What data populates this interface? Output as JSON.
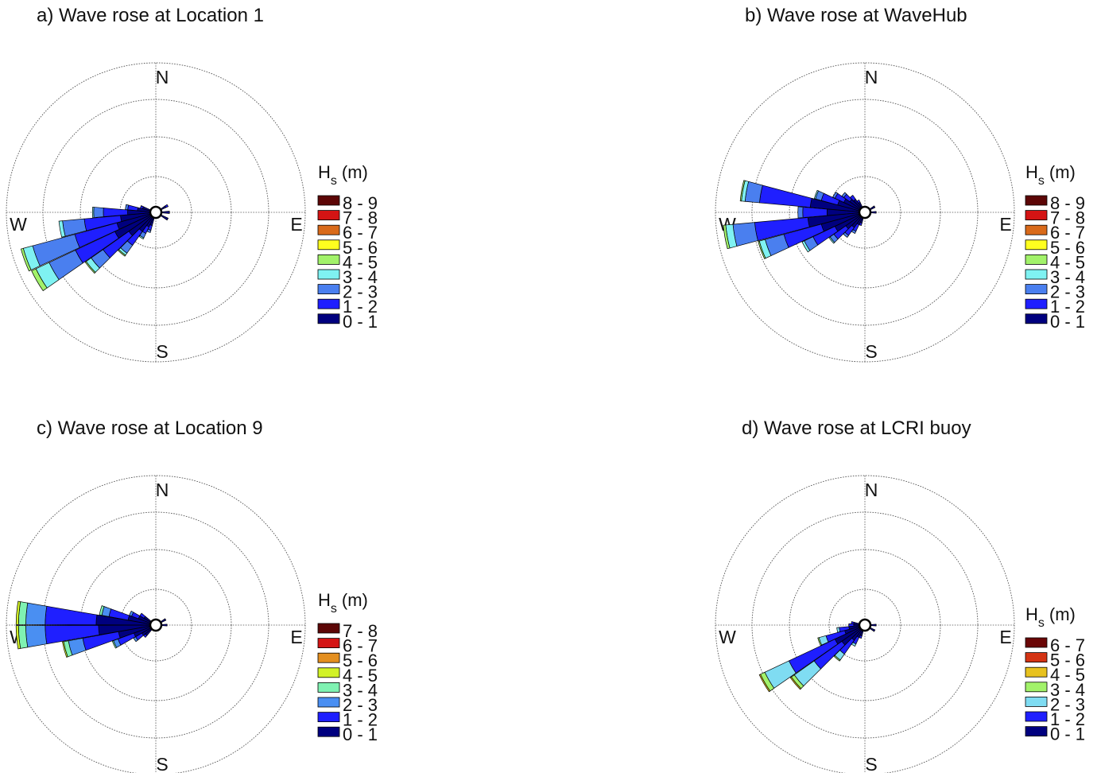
{
  "chart_data": [
    {
      "type": "wave-rose",
      "title": "a) Wave rose at Location 1",
      "compass": [
        "N",
        "E",
        "S",
        "W"
      ],
      "legend_title": "H",
      "legend_title_sub": "s",
      "legend_title_unit": "(m)",
      "bins": [
        "0 - 1",
        "1 - 2",
        "2 - 3",
        "3 - 4",
        "4 - 5",
        "5 - 6",
        "6 - 7",
        "7 - 8",
        "8 - 9"
      ],
      "bin_colors": [
        "#00007f",
        "#1f1fff",
        "#4a7fef",
        "#7ff2f2",
        "#a2f26a",
        "#ffff1f",
        "#d96a1a",
        "#d41414",
        "#5c0606"
      ],
      "directions": [
        {
          "dir": 240,
          "cum": [
            17,
            35,
            47,
            53,
            55,
            55,
            55,
            55,
            55
          ]
        },
        {
          "dir": 250,
          "cum": [
            15,
            33,
            51,
            55,
            56,
            56,
            56,
            56,
            56
          ]
        },
        {
          "dir": 260,
          "cum": [
            13,
            28,
            37,
            38.5,
            38.5,
            38.5,
            38.5,
            38.5,
            38.5
          ]
        },
        {
          "dir": 270,
          "cum": [
            10,
            20,
            24,
            24.5,
            24.5,
            24.5,
            24.5,
            24.5,
            24.5
          ]
        },
        {
          "dir": 230,
          "cum": [
            12,
            25,
            31,
            33.5,
            34,
            34,
            34,
            34,
            34
          ]
        },
        {
          "dir": 220,
          "cum": [
            8,
            15,
            19,
            20,
            20.5,
            20.5,
            20.5,
            20.5,
            20.5
          ]
        },
        {
          "dir": 280,
          "cum": [
            6,
            10,
            11,
            11,
            11,
            11,
            11,
            11,
            11
          ]
        },
        {
          "dir": 210,
          "cum": [
            5,
            8,
            10,
            10.5,
            10.5,
            10.5,
            10.5,
            10.5,
            10.5
          ]
        },
        {
          "dir": 200,
          "cum": [
            4,
            6,
            7,
            7,
            7,
            7,
            7,
            7,
            7
          ]
        },
        {
          "dir": 290,
          "cum": [
            4,
            5,
            5,
            5,
            5,
            5,
            5,
            5,
            5
          ]
        },
        {
          "dir": 60,
          "cum": [
            3,
            4,
            4,
            4,
            4,
            4,
            4,
            4,
            4
          ]
        },
        {
          "dir": 90,
          "cum": [
            4,
            4,
            4,
            4,
            4,
            4,
            4,
            4,
            4
          ]
        },
        {
          "dir": 120,
          "cum": [
            4,
            4,
            4,
            4,
            4,
            4,
            4,
            4,
            4
          ]
        }
      ]
    },
    {
      "type": "wave-rose",
      "title": "b) Wave rose at WaveHub",
      "compass": [
        "N",
        "E",
        "S",
        "W"
      ],
      "legend_title": "H",
      "legend_title_sub": "s",
      "legend_title_unit": "(m)",
      "bins": [
        "0 - 1",
        "1 - 2",
        "2 - 3",
        "3 - 4",
        "4 - 5",
        "5 - 6",
        "6 - 7",
        "7 - 8",
        "8 - 9"
      ],
      "bin_colors": [
        "#00007f",
        "#1f1fff",
        "#4a7fef",
        "#7ff2f2",
        "#a2f26a",
        "#ffff1f",
        "#d96a1a",
        "#d41414",
        "#5c0606"
      ],
      "directions": [
        {
          "dir": 260,
          "cum": [
            22,
            44,
            53,
            56,
            57,
            57,
            57,
            57,
            57
          ]
        },
        {
          "dir": 280,
          "cum": [
            21,
            42,
            48,
            49.5,
            50,
            50,
            50,
            50,
            50
          ]
        },
        {
          "dir": 250,
          "cum": [
            17,
            33,
            41,
            43.5,
            44,
            44,
            44,
            44,
            44
          ]
        },
        {
          "dir": 240,
          "cum": [
            12,
            22,
            26,
            27,
            27,
            27,
            27,
            27,
            27
          ]
        },
        {
          "dir": 290,
          "cum": [
            10,
            17,
            19.5,
            20,
            20,
            20,
            20,
            20,
            20
          ]
        },
        {
          "dir": 230,
          "cum": [
            8,
            14,
            16,
            16.5,
            16.5,
            16.5,
            16.5,
            16.5,
            16.5
          ]
        },
        {
          "dir": 300,
          "cum": [
            8,
            12,
            13,
            13,
            13,
            13,
            13,
            13,
            13
          ]
        },
        {
          "dir": 270,
          "cum": [
            14,
            24,
            26,
            26,
            26,
            26,
            26,
            26,
            26
          ]
        },
        {
          "dir": 220,
          "cum": [
            6,
            10,
            11,
            11,
            11,
            11,
            11,
            11,
            11
          ]
        },
        {
          "dir": 310,
          "cum": [
            6,
            9,
            10,
            10,
            10,
            10,
            10,
            10,
            10
          ]
        },
        {
          "dir": 320,
          "cum": [
            5,
            7,
            7,
            7,
            7,
            7,
            7,
            7,
            7
          ]
        },
        {
          "dir": 210,
          "cum": [
            4,
            7,
            8,
            8,
            8,
            8,
            8,
            8,
            8
          ]
        },
        {
          "dir": 330,
          "cum": [
            3,
            4,
            4,
            4,
            4,
            4,
            4,
            4,
            4
          ]
        },
        {
          "dir": 200,
          "cum": [
            3,
            4,
            4,
            4,
            4,
            4,
            4,
            4,
            4
          ]
        },
        {
          "dir": 90,
          "cum": [
            3,
            3,
            3,
            3,
            3,
            3,
            3,
            3,
            3
          ]
        },
        {
          "dir": 60,
          "cum": [
            3,
            3,
            3,
            3,
            3,
            3,
            3,
            3,
            3
          ]
        }
      ]
    },
    {
      "type": "wave-rose",
      "title": "c) Wave rose at Location 9",
      "compass": [
        "N",
        "E",
        "S",
        "W"
      ],
      "legend_title": "H",
      "legend_title_sub": "s",
      "legend_title_unit": "(m)",
      "bins": [
        "0 - 1",
        "1 - 2",
        "2 - 3",
        "3 - 4",
        "4 - 5",
        "5 - 6",
        "6 - 7",
        "7 - 8"
      ],
      "bin_colors": [
        "#00007f",
        "#1f1fff",
        "#4a8ff2",
        "#7ff2b2",
        "#d2f226",
        "#e48f1f",
        "#d41414",
        "#5c0606"
      ],
      "directions": [
        {
          "dir": 265,
          "cum": [
            22,
            44,
            52,
            55,
            56,
            56,
            56,
            56
          ]
        },
        {
          "dir": 275,
          "cum": [
            23,
            44,
            52,
            55,
            56,
            56,
            56,
            56
          ]
        },
        {
          "dir": 255,
          "cum": [
            14,
            29,
            35,
            37,
            37.5,
            37.5,
            37.5,
            37.5
          ]
        },
        {
          "dir": 285,
          "cum": [
            10,
            18,
            21,
            22,
            22,
            22,
            22,
            22
          ]
        },
        {
          "dir": 245,
          "cum": [
            8,
            15,
            17,
            17.5,
            17.5,
            17.5,
            17.5,
            17.5
          ]
        },
        {
          "dir": 295,
          "cum": [
            6,
            9,
            10,
            10,
            10,
            10,
            10,
            10
          ]
        },
        {
          "dir": 235,
          "cum": [
            5,
            8,
            9,
            9,
            9,
            9,
            9,
            9
          ]
        },
        {
          "dir": 305,
          "cum": [
            4,
            6,
            6,
            6,
            6,
            6,
            6,
            6
          ]
        },
        {
          "dir": 225,
          "cum": [
            4,
            5,
            5,
            5,
            5,
            5,
            5,
            5
          ]
        },
        {
          "dir": 60,
          "cum": [
            3,
            3,
            3,
            3,
            3,
            3,
            3,
            3
          ]
        },
        {
          "dir": 90,
          "cum": [
            3,
            3,
            3,
            3,
            3,
            3,
            3,
            3
          ]
        }
      ]
    },
    {
      "type": "wave-rose",
      "title": "d) Wave rose at LCRI buoy",
      "compass": [
        "N",
        "E",
        "S",
        "W"
      ],
      "legend_title": "H",
      "legend_title_sub": "s",
      "legend_title_unit": "(m)",
      "bins": [
        "0 - 1",
        "1 - 2",
        "2 - 3",
        "3 - 4",
        "4 - 5",
        "5 - 6",
        "6 - 7"
      ],
      "bin_colors": [
        "#00007f",
        "#1f1fff",
        "#7fdcf2",
        "#a2f26a",
        "#e8c21f",
        "#d43414",
        "#6a0606"
      ],
      "directions": [
        {
          "dir": 240,
          "cum": [
            12,
            33,
            44,
            46,
            46.5,
            46.5,
            46.5
          ]
        },
        {
          "dir": 230,
          "cum": [
            10,
            24,
            34,
            35.5,
            36,
            36,
            36
          ]
        },
        {
          "dir": 250,
          "cum": [
            7,
            15,
            18,
            18.5,
            18.5,
            18.5,
            18.5
          ]
        },
        {
          "dir": 220,
          "cum": [
            6,
            13,
            16,
            16.5,
            16.5,
            16.5,
            16.5
          ]
        },
        {
          "dir": 210,
          "cum": [
            4,
            7,
            8,
            8,
            8,
            8,
            8
          ]
        },
        {
          "dir": 260,
          "cum": [
            5,
            9,
            10,
            10,
            10,
            10,
            10
          ]
        },
        {
          "dir": 270,
          "cum": [
            3,
            5,
            5,
            5,
            5,
            5,
            5
          ]
        },
        {
          "dir": 280,
          "cum": [
            3,
            4,
            4,
            4,
            4,
            4,
            4
          ]
        },
        {
          "dir": 200,
          "cum": [
            3,
            4,
            4,
            4,
            4,
            4,
            4
          ]
        },
        {
          "dir": 90,
          "cum": [
            3,
            3,
            3,
            3,
            3,
            3,
            3
          ]
        },
        {
          "dir": 120,
          "cum": [
            3,
            3,
            3,
            3,
            3,
            3,
            3
          ]
        }
      ]
    }
  ]
}
